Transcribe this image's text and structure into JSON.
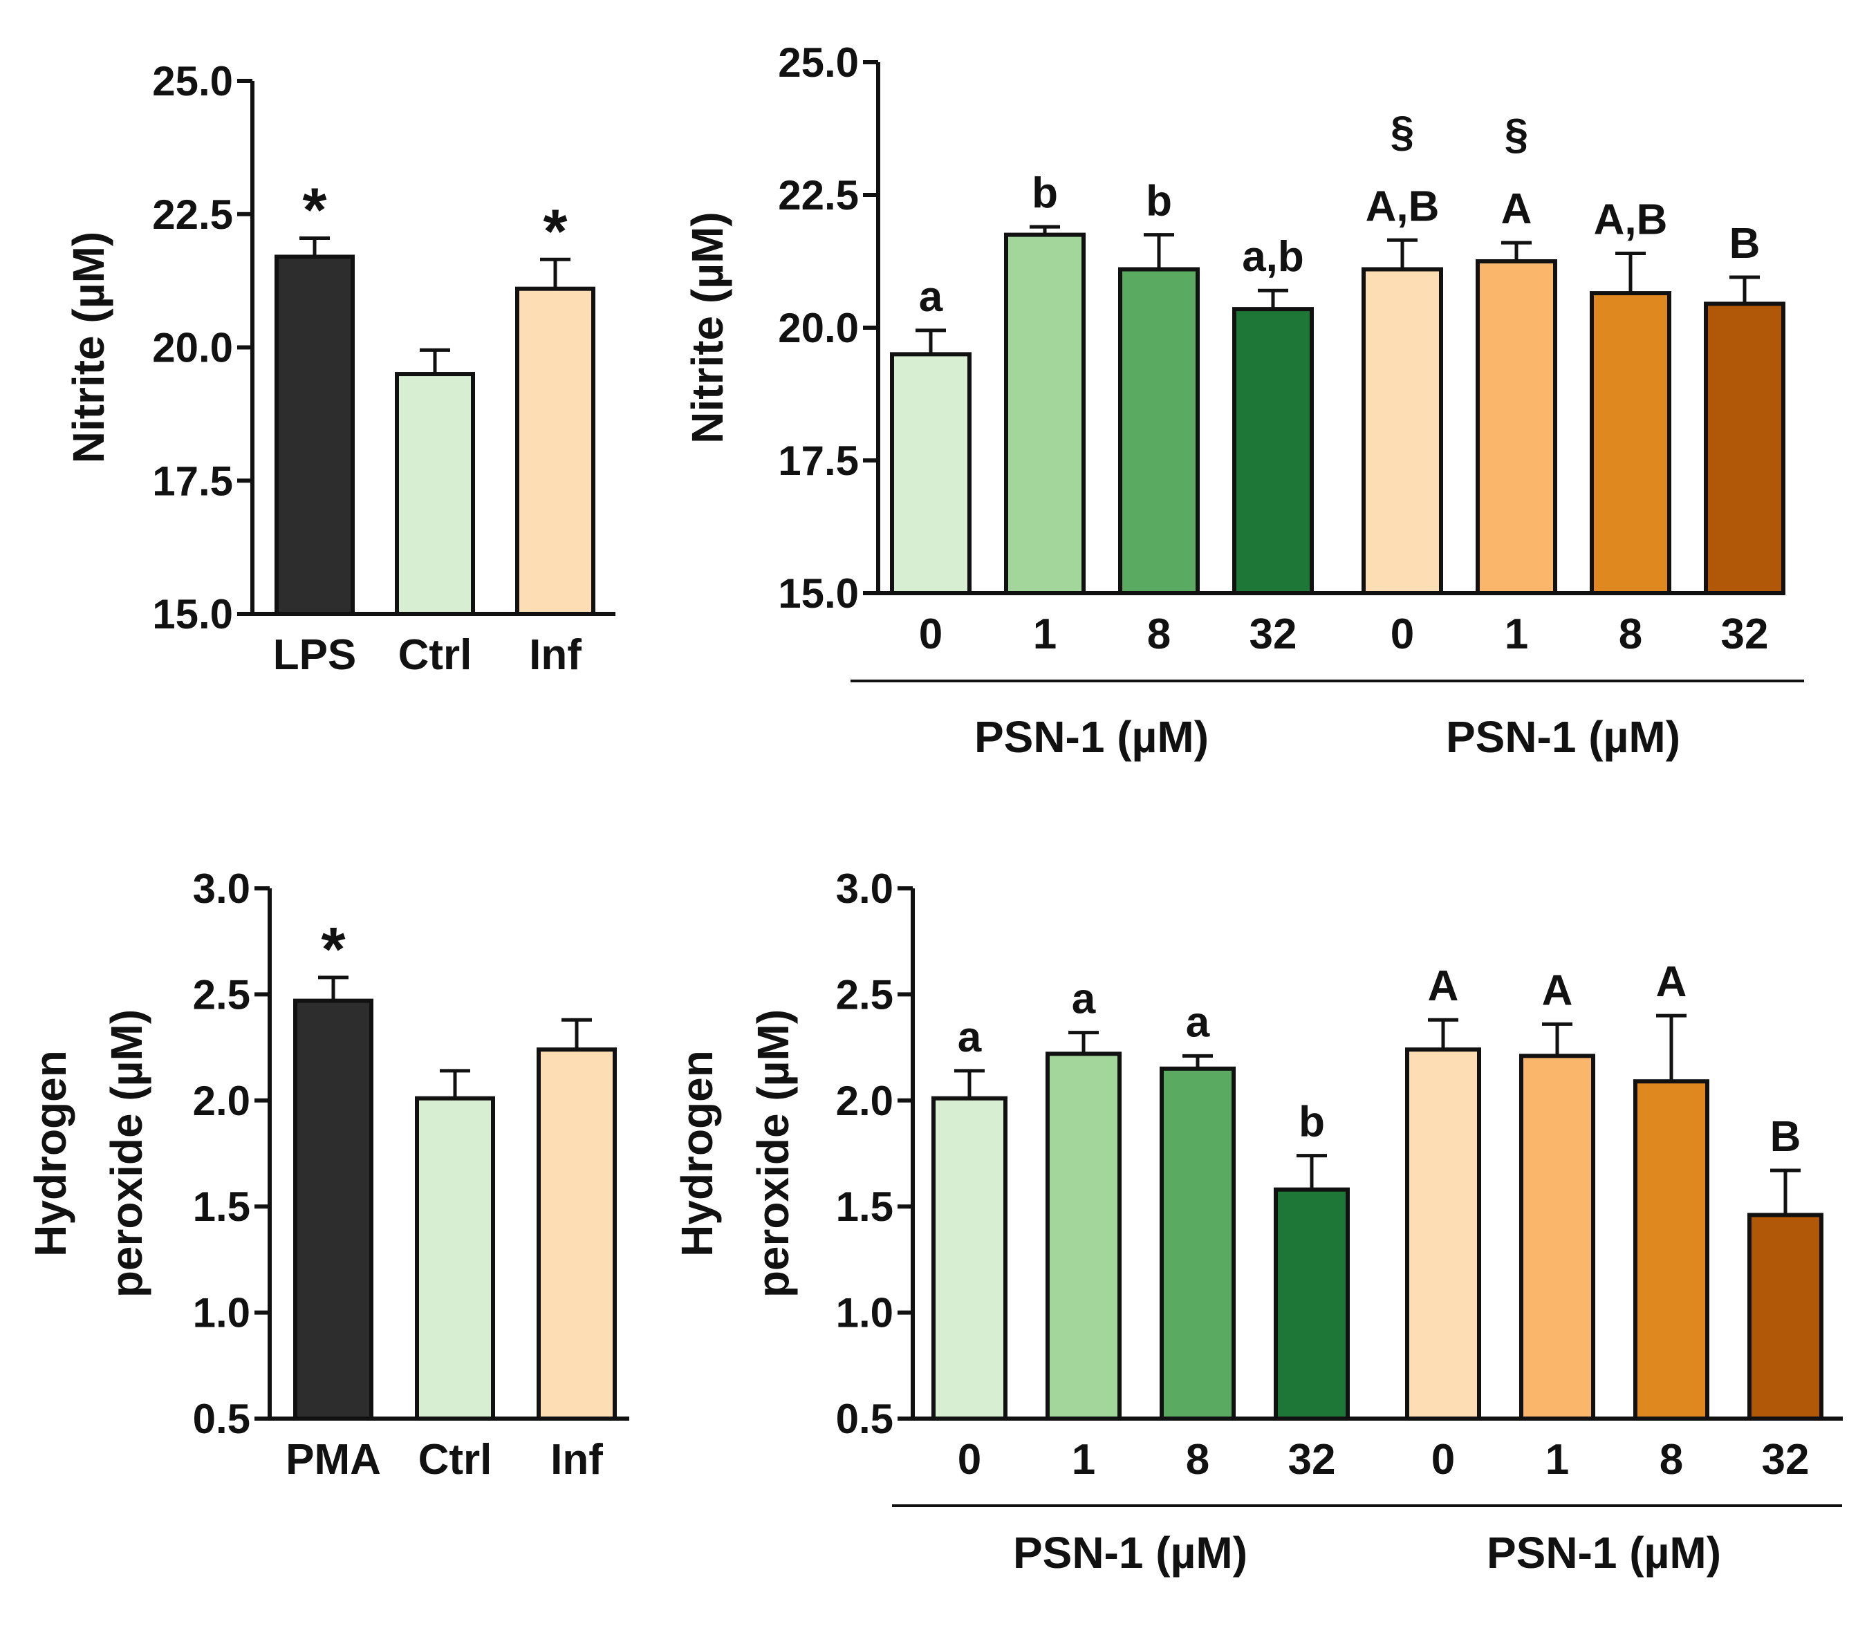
{
  "chart_data": [
    {
      "id": "nitrite_controls",
      "type": "bar",
      "title": "",
      "ylabel": "Nitrite (µM)",
      "xlabel": "",
      "ylim": [
        15.0,
        25.0
      ],
      "yticks": [
        "15.0",
        "17.5",
        "20.0",
        "22.5",
        "25.0"
      ],
      "categories": [
        "LPS",
        "Ctrl",
        "Inf"
      ],
      "values": [
        21.7,
        19.5,
        21.1
      ],
      "errors": [
        0.35,
        0.45,
        0.55
      ],
      "colors": [
        "#2d2d2d",
        "#d7eed3",
        "#fcddb4"
      ],
      "labels": [
        "*",
        "",
        "*"
      ],
      "labels_top": [
        "",
        "",
        ""
      ],
      "groups": []
    },
    {
      "id": "nitrite_psn1",
      "type": "bar",
      "title": "",
      "ylabel": "Nitrite (µM)",
      "xlabel": "",
      "ylim": [
        15.0,
        25.0
      ],
      "yticks": [
        "15.0",
        "17.5",
        "20.0",
        "22.5",
        "25.0"
      ],
      "categories": [
        "0",
        "1",
        "8",
        "32",
        "0",
        "1",
        "8",
        "32"
      ],
      "values": [
        19.5,
        21.75,
        21.1,
        20.35,
        21.1,
        21.25,
        20.65,
        20.45
      ],
      "errors": [
        0.45,
        0.15,
        0.65,
        0.35,
        0.55,
        0.35,
        0.75,
        0.5
      ],
      "colors": [
        "#d7eed3",
        "#a2d69b",
        "#5aab61",
        "#1e7737",
        "#fcddb4",
        "#fab66a",
        "#e08820",
        "#b05808"
      ],
      "labels": [
        "a",
        "b",
        "b",
        "a,b",
        "A,B",
        "A",
        "A,B",
        "B"
      ],
      "labels_top": [
        "",
        "",
        "",
        "",
        "§",
        "§",
        "",
        ""
      ],
      "groups": [
        {
          "label": "PSN-1 (µM)",
          "start": 0,
          "end": 3
        },
        {
          "label": "PSN-1 (µM)",
          "start": 4,
          "end": 7
        }
      ]
    },
    {
      "id": "h2o2_controls",
      "type": "bar",
      "title": "",
      "ylabel": "Hydrogen peroxide (µM)",
      "ylabel_lines": [
        "Hydrogen",
        "peroxide (µM)"
      ],
      "xlabel": "",
      "ylim": [
        0.5,
        3.0
      ],
      "yticks": [
        "0.5",
        "1.0",
        "1.5",
        "2.0",
        "2.5",
        "3.0"
      ],
      "categories": [
        "PMA",
        "Ctrl",
        "Inf"
      ],
      "values": [
        2.47,
        2.01,
        2.24
      ],
      "errors": [
        0.11,
        0.13,
        0.14
      ],
      "colors": [
        "#2d2d2d",
        "#d7eed3",
        "#fcddb4"
      ],
      "labels": [
        "*",
        "",
        ""
      ],
      "labels_top": [
        "",
        "",
        ""
      ],
      "groups": []
    },
    {
      "id": "h2o2_psn1",
      "type": "bar",
      "title": "",
      "ylabel": "Hydrogen peroxide (µM)",
      "ylabel_lines": [
        "Hydrogen",
        "peroxide (µM)"
      ],
      "xlabel": "",
      "ylim": [
        0.5,
        3.0
      ],
      "yticks": [
        "0.5",
        "1.0",
        "1.5",
        "2.0",
        "2.5",
        "3.0"
      ],
      "categories": [
        "0",
        "1",
        "8",
        "32",
        "0",
        "1",
        "8",
        "32"
      ],
      "values": [
        2.01,
        2.22,
        2.15,
        1.58,
        2.24,
        2.21,
        2.09,
        1.46
      ],
      "errors": [
        0.13,
        0.1,
        0.06,
        0.16,
        0.14,
        0.15,
        0.31,
        0.21
      ],
      "colors": [
        "#d7eed3",
        "#a2d69b",
        "#5aab61",
        "#1e7737",
        "#fcddb4",
        "#fab66a",
        "#e08820",
        "#b05808"
      ],
      "labels": [
        "a",
        "a",
        "a",
        "b",
        "A",
        "A",
        "A",
        "B"
      ],
      "labels_top": [
        "",
        "",
        "",
        "",
        "",
        "",
        "",
        ""
      ],
      "groups": [
        {
          "label": "PSN-1 (µM)",
          "start": 0,
          "end": 3
        },
        {
          "label": "PSN-1 (µM)",
          "start": 4,
          "end": 7
        }
      ]
    }
  ]
}
